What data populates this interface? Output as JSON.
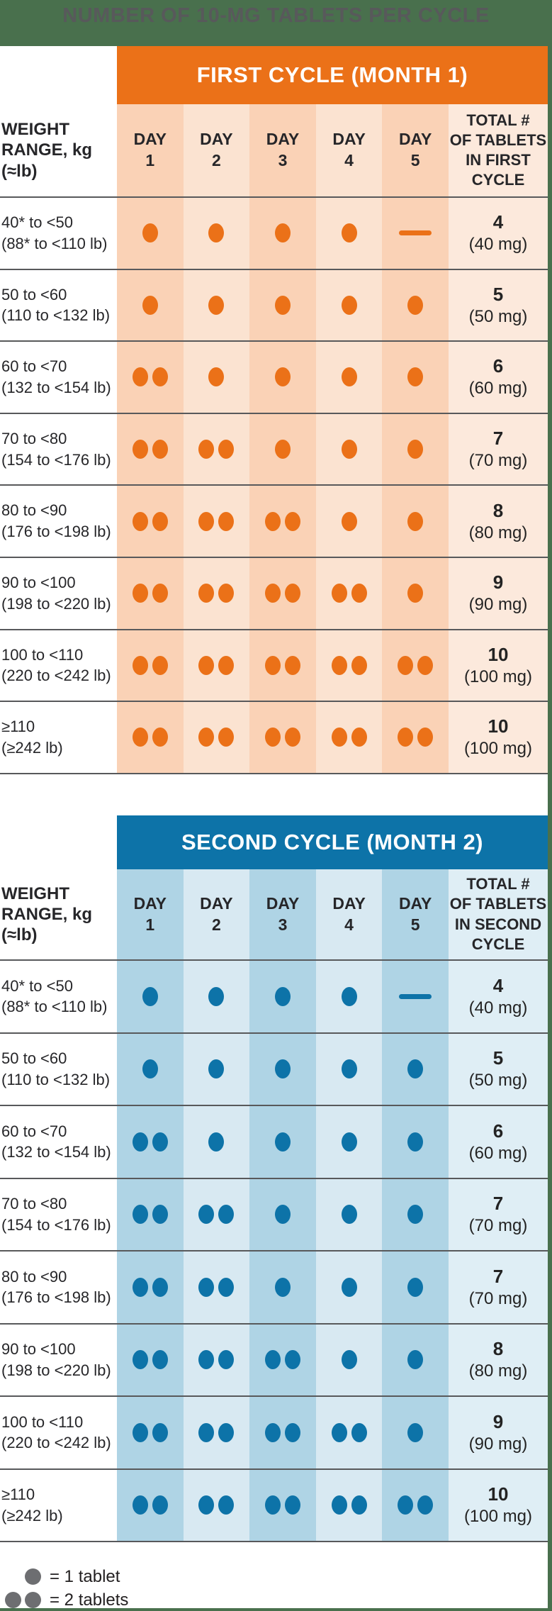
{
  "title": "NUMBER OF 10-MG TABLETS PER CYCLE",
  "colors": {
    "background_green": "#49704D",
    "title_gray": "#58595B",
    "separator_gray": "#58595B",
    "legend_dot_gray": "#6D6E71",
    "cycle1_accent": "#EB7118",
    "cycle2_accent": "#0D73A8"
  },
  "tables": [
    {
      "cycle_header": "FIRST CYCLE (MONTH 1)",
      "weight_header": "WEIGHT\nRANGE, kg\n(≈lb)",
      "day_headers": [
        "DAY\n1",
        "DAY\n2",
        "DAY\n3",
        "DAY\n4",
        "DAY\n5"
      ],
      "total_header": "TOTAL #\nOF TABLETS\nIN FIRST\nCYCLE",
      "colors": {
        "accent": "#EB7118",
        "day_dark": "#FAD2B6",
        "day_light": "#FBE3D1",
        "total": "#FCE9DC",
        "dot": "#EB7118"
      },
      "rows": [
        {
          "kg": "40* to <50",
          "lb": "(88* to <110 lb)",
          "days": [
            1,
            1,
            1,
            1,
            0
          ],
          "total": "4",
          "mg": "(40 mg)"
        },
        {
          "kg": "50 to <60",
          "lb": "(110 to <132 lb)",
          "days": [
            1,
            1,
            1,
            1,
            1
          ],
          "total": "5",
          "mg": "(50 mg)"
        },
        {
          "kg": "60 to <70",
          "lb": "(132 to <154 lb)",
          "days": [
            2,
            1,
            1,
            1,
            1
          ],
          "total": "6",
          "mg": "(60 mg)"
        },
        {
          "kg": "70 to <80",
          "lb": "(154 to <176 lb)",
          "days": [
            2,
            2,
            1,
            1,
            1
          ],
          "total": "7",
          "mg": "(70 mg)"
        },
        {
          "kg": "80 to <90",
          "lb": "(176 to <198 lb)",
          "days": [
            2,
            2,
            2,
            1,
            1
          ],
          "total": "8",
          "mg": "(80 mg)"
        },
        {
          "kg": "90 to <100",
          "lb": "(198 to <220 lb)",
          "days": [
            2,
            2,
            2,
            2,
            1
          ],
          "total": "9",
          "mg": "(90 mg)"
        },
        {
          "kg": "100 to <110",
          "lb": "(220 to <242 lb)",
          "days": [
            2,
            2,
            2,
            2,
            2
          ],
          "total": "10",
          "mg": "(100 mg)"
        },
        {
          "kg": "≥110",
          "lb": "(≥242 lb)",
          "days": [
            2,
            2,
            2,
            2,
            2
          ],
          "total": "10",
          "mg": "(100 mg)"
        }
      ]
    },
    {
      "cycle_header": "SECOND CYCLE (MONTH 2)",
      "weight_header": "WEIGHT\nRANGE, kg\n(≈lb)",
      "day_headers": [
        "DAY\n1",
        "DAY\n2",
        "DAY\n3",
        "DAY\n4",
        "DAY\n5"
      ],
      "total_header": "TOTAL #\nOF TABLETS\nIN SECOND\nCYCLE",
      "colors": {
        "accent": "#0D73A8",
        "day_dark": "#AFD4E5",
        "day_light": "#D8E9F2",
        "total": "#DFEEF5",
        "dot": "#0D73A8"
      },
      "rows": [
        {
          "kg": "40* to <50",
          "lb": "(88* to <110 lb)",
          "days": [
            1,
            1,
            1,
            1,
            0
          ],
          "total": "4",
          "mg": "(40 mg)"
        },
        {
          "kg": "50 to <60",
          "lb": "(110 to <132 lb)",
          "days": [
            1,
            1,
            1,
            1,
            1
          ],
          "total": "5",
          "mg": "(50 mg)"
        },
        {
          "kg": "60 to <70",
          "lb": "(132 to <154 lb)",
          "days": [
            2,
            1,
            1,
            1,
            1
          ],
          "total": "6",
          "mg": "(60 mg)"
        },
        {
          "kg": "70 to <80",
          "lb": "(154 to <176 lb)",
          "days": [
            2,
            2,
            1,
            1,
            1
          ],
          "total": "7",
          "mg": "(70 mg)"
        },
        {
          "kg": "80 to <90",
          "lb": "(176 to <198 lb)",
          "days": [
            2,
            2,
            1,
            1,
            1
          ],
          "total": "7",
          "mg": "(70 mg)"
        },
        {
          "kg": "90 to <100",
          "lb": "(198 to <220 lb)",
          "days": [
            2,
            2,
            2,
            1,
            1
          ],
          "total": "8",
          "mg": "(80 mg)"
        },
        {
          "kg": "100 to <110",
          "lb": "(220 to <242 lb)",
          "days": [
            2,
            2,
            2,
            2,
            1
          ],
          "total": "9",
          "mg": "(90 mg)"
        },
        {
          "kg": "≥110",
          "lb": "(≥242 lb)",
          "days": [
            2,
            2,
            2,
            2,
            2
          ],
          "total": "10",
          "mg": "(100 mg)"
        }
      ]
    }
  ],
  "legend": {
    "items": [
      {
        "dots": 1,
        "label": "= 1 tablet"
      },
      {
        "dots": 2,
        "label": "= 2 tablets"
      }
    ]
  }
}
